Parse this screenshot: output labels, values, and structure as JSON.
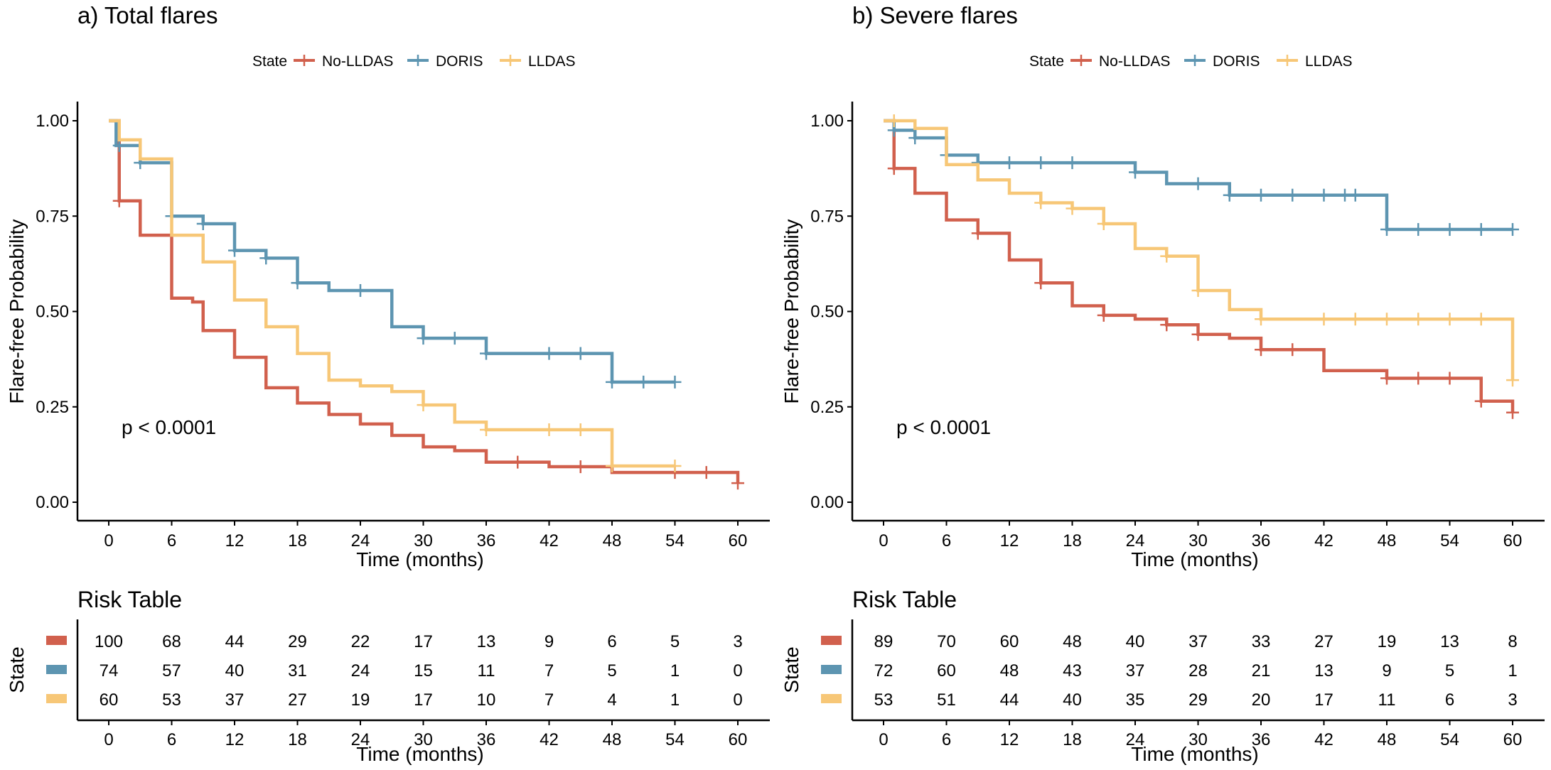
{
  "colors": {
    "No-LLDAS": "#D1604D",
    "DORIS": "#5D95B1",
    "LLDAS": "#F7C777"
  },
  "chart_data": [
    {
      "type": "line",
      "subtype": "kaplan-meier step",
      "title": "a) Total flares",
      "legend_title": "State",
      "legend_position": "top",
      "xlabel": "Time (months)",
      "ylabel": "Flare-free Probability",
      "xlim": [
        0,
        60
      ],
      "ylim": [
        0,
        1
      ],
      "xticks": [
        0,
        6,
        12,
        18,
        24,
        30,
        36,
        42,
        48,
        54,
        60
      ],
      "xtick_labels": [
        "0",
        "6",
        "12",
        "18",
        "24",
        "30",
        "36",
        "42",
        "48",
        "54",
        "60"
      ],
      "yticks": [
        0,
        0.25,
        0.5,
        0.75,
        1.0
      ],
      "ytick_labels": [
        "0.00",
        "0.25",
        "0.50",
        "0.75",
        "1.00"
      ],
      "grid": false,
      "annotation": "p < 0.0001",
      "series": [
        {
          "name": "No-LLDAS",
          "steps": [
            [
              0,
              1.0
            ],
            [
              1,
              0.79
            ],
            [
              3,
              0.7
            ],
            [
              6,
              0.535
            ],
            [
              8,
              0.525
            ],
            [
              9,
              0.45
            ],
            [
              12,
              0.38
            ],
            [
              15,
              0.3
            ],
            [
              18,
              0.26
            ],
            [
              21,
              0.23
            ],
            [
              24,
              0.205
            ],
            [
              27,
              0.175
            ],
            [
              30,
              0.145
            ],
            [
              33,
              0.135
            ],
            [
              36,
              0.105
            ],
            [
              42,
              0.093
            ],
            [
              48,
              0.078
            ],
            [
              60,
              0.05
            ]
          ],
          "end": 60,
          "censors": [
            [
              1,
              0.79
            ],
            [
              39,
              0.105
            ],
            [
              45,
              0.093
            ],
            [
              54,
              0.078
            ],
            [
              57,
              0.078
            ],
            [
              60,
              0.05
            ]
          ]
        },
        {
          "name": "DORIS",
          "steps": [
            [
              0,
              1.0
            ],
            [
              0.7,
              0.935
            ],
            [
              3,
              0.89
            ],
            [
              6,
              0.75
            ],
            [
              9,
              0.73
            ],
            [
              12,
              0.66
            ],
            [
              15,
              0.64
            ],
            [
              18,
              0.575
            ],
            [
              21,
              0.555
            ],
            [
              27,
              0.46
            ],
            [
              30,
              0.43
            ],
            [
              36,
              0.39
            ],
            [
              48,
              0.315
            ]
          ],
          "end": 54,
          "censors": [
            [
              1,
              0.935
            ],
            [
              3,
              0.89
            ],
            [
              6,
              0.75
            ],
            [
              9,
              0.73
            ],
            [
              12,
              0.66
            ],
            [
              15,
              0.64
            ],
            [
              18,
              0.575
            ],
            [
              24,
              0.555
            ],
            [
              30,
              0.43
            ],
            [
              33,
              0.43
            ],
            [
              36,
              0.39
            ],
            [
              42,
              0.39
            ],
            [
              45,
              0.39
            ],
            [
              48,
              0.315
            ],
            [
              51,
              0.315
            ],
            [
              54,
              0.315
            ]
          ]
        },
        {
          "name": "LLDAS",
          "steps": [
            [
              0,
              1.0
            ],
            [
              1,
              0.95
            ],
            [
              3,
              0.9
            ],
            [
              6,
              0.7
            ],
            [
              9,
              0.63
            ],
            [
              12,
              0.53
            ],
            [
              15,
              0.46
            ],
            [
              18,
              0.39
            ],
            [
              21,
              0.32
            ],
            [
              24,
              0.305
            ],
            [
              27,
              0.29
            ],
            [
              30,
              0.255
            ],
            [
              33,
              0.21
            ],
            [
              36,
              0.19
            ],
            [
              48,
              0.095
            ]
          ],
          "end": 54,
          "censors": [
            [
              30,
              0.255
            ],
            [
              36,
              0.19
            ],
            [
              42,
              0.19
            ],
            [
              45,
              0.19
            ],
            [
              48,
              0.095
            ],
            [
              54,
              0.095
            ]
          ]
        }
      ],
      "risk_table": {
        "title": "Risk Table",
        "ylabel": "State",
        "xlabel": "Time (months)",
        "times": [
          0,
          6,
          12,
          18,
          24,
          30,
          36,
          42,
          48,
          54,
          60
        ],
        "rows": [
          {
            "name": "No-LLDAS",
            "values": [
              100,
              68,
              44,
              29,
              22,
              17,
              13,
              9,
              6,
              5,
              3
            ]
          },
          {
            "name": "DORIS",
            "values": [
              74,
              57,
              40,
              31,
              24,
              15,
              11,
              7,
              5,
              1,
              0
            ]
          },
          {
            "name": "LLDAS",
            "values": [
              60,
              53,
              37,
              27,
              19,
              17,
              10,
              7,
              4,
              1,
              0
            ]
          }
        ]
      }
    },
    {
      "type": "line",
      "subtype": "kaplan-meier step",
      "title": "b) Severe flares",
      "legend_title": "State",
      "legend_position": "top",
      "xlabel": "Time (months)",
      "ylabel": "Flare-free Probability",
      "xlim": [
        0,
        60
      ],
      "ylim": [
        0,
        1
      ],
      "xticks": [
        0,
        6,
        12,
        18,
        24,
        30,
        36,
        42,
        48,
        54,
        60
      ],
      "xtick_labels": [
        "0",
        "6",
        "12",
        "18",
        "24",
        "30",
        "36",
        "42",
        "48",
        "54",
        "60"
      ],
      "yticks": [
        0,
        0.25,
        0.5,
        0.75,
        1.0
      ],
      "ytick_labels": [
        "0.00",
        "0.25",
        "0.50",
        "0.75",
        "1.00"
      ],
      "grid": false,
      "annotation": "p < 0.0001",
      "series": [
        {
          "name": "No-LLDAS",
          "steps": [
            [
              0,
              1.0
            ],
            [
              1,
              0.875
            ],
            [
              3,
              0.81
            ],
            [
              6,
              0.74
            ],
            [
              9,
              0.705
            ],
            [
              12,
              0.635
            ],
            [
              15,
              0.575
            ],
            [
              18,
              0.515
            ],
            [
              21,
              0.49
            ],
            [
              24,
              0.48
            ],
            [
              27,
              0.465
            ],
            [
              30,
              0.44
            ],
            [
              33,
              0.43
            ],
            [
              36,
              0.4
            ],
            [
              42,
              0.345
            ],
            [
              48,
              0.325
            ],
            [
              57,
              0.265
            ],
            [
              60,
              0.235
            ]
          ],
          "end": 60,
          "censors": [
            [
              1,
              0.875
            ],
            [
              9,
              0.705
            ],
            [
              15,
              0.575
            ],
            [
              21,
              0.49
            ],
            [
              27,
              0.465
            ],
            [
              30,
              0.44
            ],
            [
              36,
              0.4
            ],
            [
              39,
              0.4
            ],
            [
              48,
              0.325
            ],
            [
              51,
              0.325
            ],
            [
              54,
              0.325
            ],
            [
              57,
              0.265
            ],
            [
              60,
              0.235
            ]
          ]
        },
        {
          "name": "DORIS",
          "steps": [
            [
              0,
              1.0
            ],
            [
              1,
              0.975
            ],
            [
              3,
              0.955
            ],
            [
              6,
              0.91
            ],
            [
              9,
              0.89
            ],
            [
              24,
              0.865
            ],
            [
              27,
              0.835
            ],
            [
              33,
              0.805
            ],
            [
              48,
              0.715
            ]
          ],
          "end": 60,
          "censors": [
            [
              1,
              0.975
            ],
            [
              3,
              0.955
            ],
            [
              6,
              0.91
            ],
            [
              9,
              0.89
            ],
            [
              12,
              0.89
            ],
            [
              15,
              0.89
            ],
            [
              18,
              0.89
            ],
            [
              24,
              0.865
            ],
            [
              30,
              0.835
            ],
            [
              33,
              0.805
            ],
            [
              36,
              0.805
            ],
            [
              39,
              0.805
            ],
            [
              42,
              0.805
            ],
            [
              44,
              0.805
            ],
            [
              45,
              0.805
            ],
            [
              48,
              0.715
            ],
            [
              51,
              0.715
            ],
            [
              54,
              0.715
            ],
            [
              57,
              0.715
            ],
            [
              60,
              0.715
            ]
          ]
        },
        {
          "name": "LLDAS",
          "steps": [
            [
              0,
              1.0
            ],
            [
              3,
              0.98
            ],
            [
              6,
              0.885
            ],
            [
              9,
              0.845
            ],
            [
              12,
              0.81
            ],
            [
              15,
              0.785
            ],
            [
              18,
              0.77
            ],
            [
              21,
              0.73
            ],
            [
              24,
              0.665
            ],
            [
              27,
              0.645
            ],
            [
              30,
              0.555
            ],
            [
              33,
              0.505
            ],
            [
              36,
              0.48
            ],
            [
              60,
              0.32
            ]
          ],
          "end": 60,
          "censors": [
            [
              1,
              1.0
            ],
            [
              15,
              0.785
            ],
            [
              18,
              0.77
            ],
            [
              21,
              0.73
            ],
            [
              27,
              0.645
            ],
            [
              30,
              0.555
            ],
            [
              36,
              0.48
            ],
            [
              42,
              0.48
            ],
            [
              45,
              0.48
            ],
            [
              48,
              0.48
            ],
            [
              51,
              0.48
            ],
            [
              54,
              0.48
            ],
            [
              57,
              0.48
            ],
            [
              60,
              0.32
            ]
          ]
        }
      ],
      "risk_table": {
        "title": "Risk Table",
        "ylabel": "State",
        "xlabel": "Time (months)",
        "times": [
          0,
          6,
          12,
          18,
          24,
          30,
          36,
          42,
          48,
          54,
          60
        ],
        "rows": [
          {
            "name": "No-LLDAS",
            "values": [
              89,
              70,
              60,
              48,
              40,
              37,
              33,
              27,
              19,
              13,
              8
            ]
          },
          {
            "name": "DORIS",
            "values": [
              72,
              60,
              48,
              43,
              37,
              28,
              21,
              13,
              9,
              5,
              1
            ]
          },
          {
            "name": "LLDAS",
            "values": [
              53,
              51,
              44,
              40,
              35,
              29,
              20,
              17,
              11,
              6,
              3
            ]
          }
        ]
      }
    }
  ]
}
